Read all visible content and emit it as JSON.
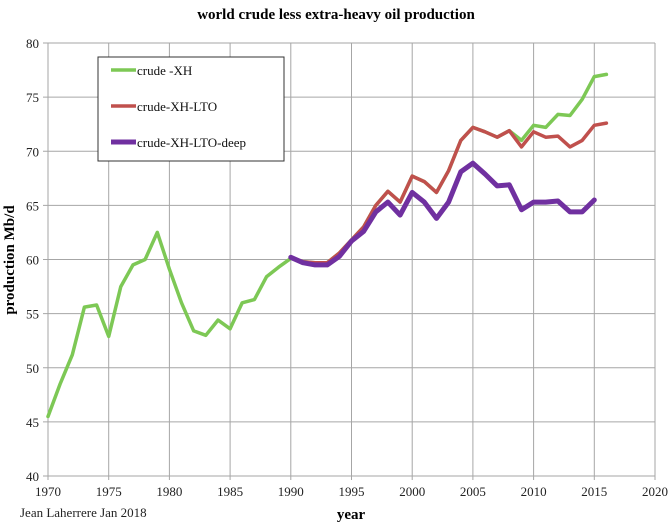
{
  "chart_data": {
    "type": "line",
    "title": "world crude less extra-heavy oil production",
    "xlabel": "year",
    "ylabel": "production Mb/d",
    "credit": "Jean Laherrere Jan 2018",
    "xlim": [
      1970,
      2020
    ],
    "ylim": [
      40,
      80
    ],
    "xticks": [
      1970,
      1975,
      1980,
      1985,
      1990,
      1995,
      2000,
      2005,
      2010,
      2015,
      2020
    ],
    "yticks": [
      40,
      45,
      50,
      55,
      60,
      65,
      70,
      75,
      80
    ],
    "grid": true,
    "legend_position": "top-left",
    "series": [
      {
        "name": "crude -XH",
        "color": "#7dc855",
        "x": [
          1970,
          1971,
          1972,
          1973,
          1974,
          1975,
          1976,
          1977,
          1978,
          1979,
          1980,
          1981,
          1982,
          1983,
          1984,
          1985,
          1986,
          1987,
          1988,
          1989,
          1990,
          1991,
          1992,
          1993,
          1994,
          1995,
          1996,
          1997,
          1998,
          1999,
          2000,
          2001,
          2002,
          2003,
          2004,
          2005,
          2006,
          2007,
          2008,
          2009,
          2010,
          2011,
          2012,
          2013,
          2014,
          2015,
          2016
        ],
        "values": [
          45.5,
          48.5,
          51.2,
          55.6,
          55.8,
          52.9,
          57.5,
          59.5,
          60.0,
          62.5,
          59.1,
          56.0,
          53.4,
          53.0,
          54.4,
          53.6,
          56.0,
          56.3,
          58.4,
          59.3,
          60.1,
          59.8,
          59.7,
          59.7,
          60.6,
          61.8,
          63.0,
          65.0,
          66.3,
          65.3,
          67.7,
          67.2,
          66.2,
          68.2,
          71.0,
          72.2,
          71.8,
          71.3,
          71.9,
          71.0,
          72.4,
          72.2,
          73.4,
          73.3,
          74.8,
          76.9,
          77.1
        ]
      },
      {
        "name": "crude-XH-LTO",
        "color": "#c0504d",
        "x": [
          1990,
          1991,
          1992,
          1993,
          1994,
          1995,
          1996,
          1997,
          1998,
          1999,
          2000,
          2001,
          2002,
          2003,
          2004,
          2005,
          2006,
          2007,
          2008,
          2009,
          2010,
          2011,
          2012,
          2013,
          2014,
          2015,
          2016
        ],
        "values": [
          60.2,
          59.8,
          59.7,
          59.7,
          60.6,
          61.8,
          63.0,
          65.0,
          66.3,
          65.3,
          67.7,
          67.2,
          66.2,
          68.2,
          71.0,
          72.2,
          71.8,
          71.3,
          71.9,
          70.4,
          71.8,
          71.3,
          71.4,
          70.4,
          71.0,
          72.4,
          72.6
        ]
      },
      {
        "name": "crude-XH-LTO-deep",
        "color": "#7030a0",
        "x": [
          1990,
          1991,
          1992,
          1993,
          1994,
          1995,
          1996,
          1997,
          1998,
          1999,
          2000,
          2001,
          2002,
          2003,
          2004,
          2005,
          2006,
          2007,
          2008,
          2009,
          2010,
          2011,
          2012,
          2013,
          2014,
          2015
        ],
        "values": [
          60.2,
          59.7,
          59.5,
          59.5,
          60.3,
          61.7,
          62.6,
          64.4,
          65.3,
          64.1,
          66.2,
          65.3,
          63.8,
          65.3,
          68.1,
          68.9,
          67.9,
          66.8,
          66.9,
          64.6,
          65.3,
          65.3,
          65.4,
          64.4,
          64.4,
          65.5
        ]
      }
    ]
  }
}
